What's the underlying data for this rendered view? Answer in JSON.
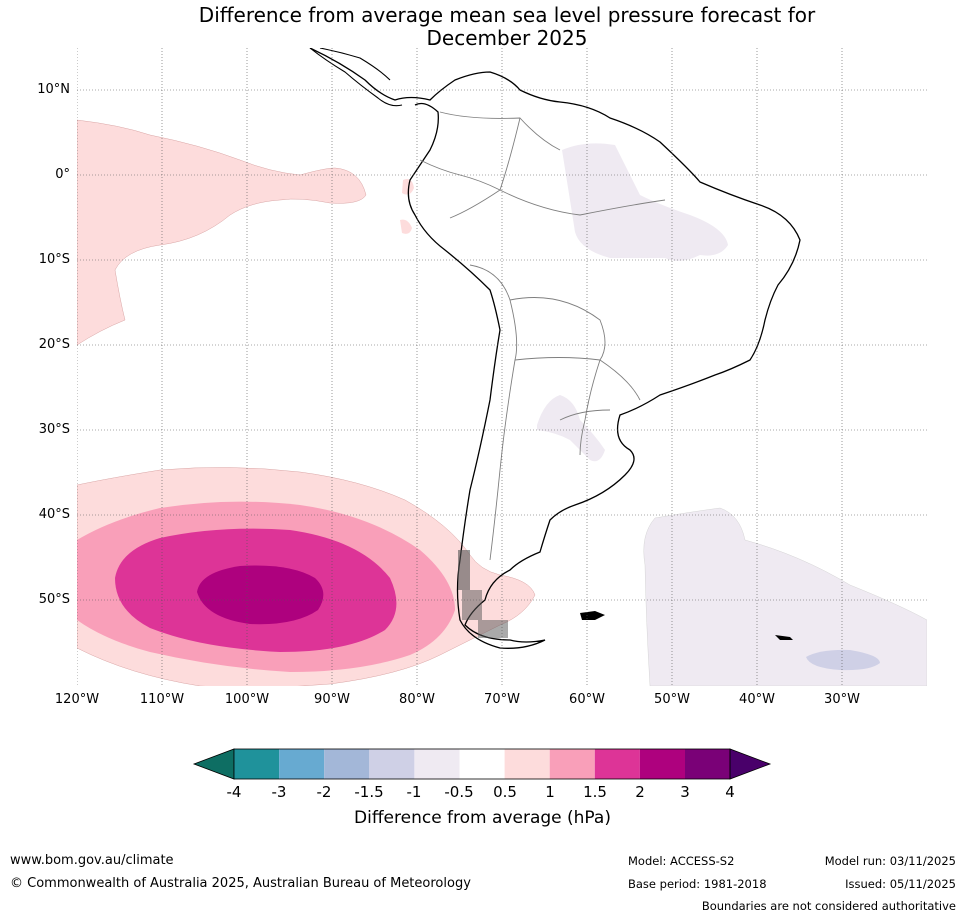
{
  "title_line1": "Difference from average mean sea level pressure forecast for",
  "title_line2": "December 2025",
  "lat_labels": [
    "10°N",
    "0°",
    "10°S",
    "20°S",
    "30°S",
    "40°S",
    "50°S"
  ],
  "lon_labels": [
    "120°W",
    "110°W",
    "100°W",
    "90°W",
    "80°W",
    "70°W",
    "60°W",
    "50°W",
    "40°W",
    "30°W"
  ],
  "colorbar": {
    "title": "Difference from average (hPa)",
    "ticks": [
      "-4",
      "-3",
      "-2",
      "-1.5",
      "-1",
      "-0.5",
      "0.5",
      "1",
      "1.5",
      "2",
      "3",
      "4"
    ],
    "colors": [
      "#0e6e63",
      "#1f929b",
      "#67aad1",
      "#a3b7d8",
      "#cfd0e6",
      "#efeaf2",
      "#ffffff",
      "#fddcdc",
      "#f99fb9",
      "#dd3497",
      "#ae017e",
      "#7a0177",
      "#49006a"
    ]
  },
  "footer": {
    "website": "www.bom.gov.au/climate",
    "copyright": "© Commonwealth of Australia 2025, Australian Bureau of Meteorology",
    "model": "Model: ACCESS-S2",
    "base_period": "Base period: 1981-2018",
    "model_run": "Model run: 03/11/2025",
    "issued": "Issued: 05/11/2025",
    "boundaries_note": "Boundaries are not considered authoritative"
  }
}
